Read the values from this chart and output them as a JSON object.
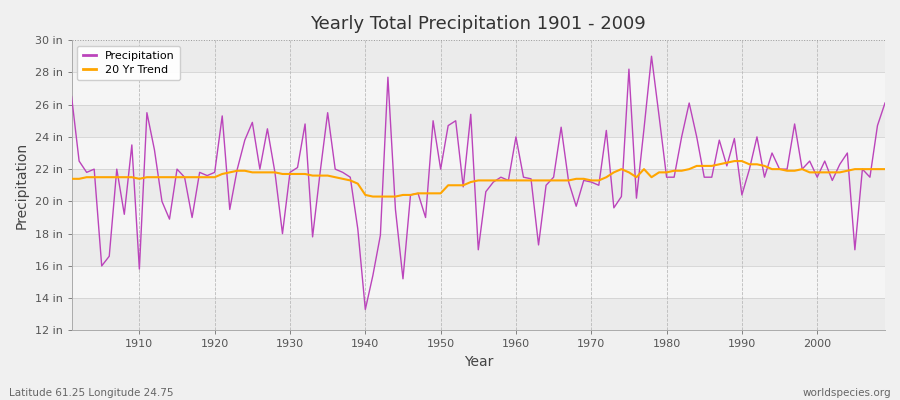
{
  "title": "Yearly Total Precipitation 1901 - 2009",
  "xlabel": "Year",
  "ylabel": "Precipitation",
  "footnote_left": "Latitude 61.25 Longitude 24.75",
  "footnote_right": "worldspecies.org",
  "fig_bg_color": "#f0f0f0",
  "plot_bg_color": "#f4f4f4",
  "precip_color": "#bb44bb",
  "trend_color": "#ffa500",
  "ylim": [
    12,
    30
  ],
  "yticks": [
    12,
    14,
    16,
    18,
    20,
    22,
    24,
    26,
    28,
    30
  ],
  "ytick_labels": [
    "12 in",
    "14 in",
    "16 in",
    "18 in",
    "20 in",
    "22 in",
    "24 in",
    "26 in",
    "28 in",
    "30 in"
  ],
  "years": [
    1901,
    1902,
    1903,
    1904,
    1905,
    1906,
    1907,
    1908,
    1909,
    1910,
    1911,
    1912,
    1913,
    1914,
    1915,
    1916,
    1917,
    1918,
    1919,
    1920,
    1921,
    1922,
    1923,
    1924,
    1925,
    1926,
    1927,
    1928,
    1929,
    1930,
    1931,
    1932,
    1933,
    1934,
    1935,
    1936,
    1937,
    1938,
    1939,
    1940,
    1941,
    1942,
    1943,
    1944,
    1945,
    1946,
    1947,
    1948,
    1949,
    1950,
    1951,
    1952,
    1953,
    1954,
    1955,
    1956,
    1957,
    1958,
    1959,
    1960,
    1961,
    1962,
    1963,
    1964,
    1965,
    1966,
    1967,
    1968,
    1969,
    1970,
    1971,
    1972,
    1973,
    1974,
    1975,
    1976,
    1977,
    1978,
    1979,
    1980,
    1981,
    1982,
    1983,
    1984,
    1985,
    1986,
    1987,
    1988,
    1989,
    1990,
    1991,
    1992,
    1993,
    1994,
    1995,
    1996,
    1997,
    1998,
    1999,
    2000,
    2001,
    2002,
    2003,
    2004,
    2005,
    2006,
    2007,
    2008,
    2009
  ],
  "precip": [
    26.5,
    22.5,
    21.8,
    22.0,
    16.0,
    16.6,
    22.0,
    19.2,
    23.5,
    15.8,
    25.5,
    23.2,
    20.0,
    18.9,
    22.0,
    21.5,
    19.0,
    21.8,
    21.6,
    21.8,
    25.3,
    19.5,
    22.0,
    23.8,
    24.9,
    22.0,
    24.5,
    21.8,
    18.0,
    21.8,
    22.1,
    24.8,
    17.8,
    21.8,
    25.5,
    22.0,
    21.8,
    21.5,
    18.3,
    13.3,
    15.4,
    17.9,
    27.7,
    19.5,
    15.2,
    20.4,
    20.5,
    19.0,
    25.0,
    22.0,
    24.7,
    25.0,
    20.9,
    25.4,
    17.0,
    20.6,
    21.2,
    21.5,
    21.3,
    24.0,
    21.5,
    21.4,
    17.3,
    21.0,
    21.5,
    24.6,
    21.2,
    19.7,
    21.3,
    21.2,
    21.0,
    24.4,
    19.6,
    20.3,
    28.2,
    20.2,
    24.5,
    29.0,
    25.3,
    21.5,
    21.5,
    24.0,
    26.1,
    24.0,
    21.5,
    21.5,
    23.8,
    22.2,
    23.9,
    20.4,
    22.0,
    24.0,
    21.5,
    23.0,
    22.0,
    22.0,
    24.8,
    22.0,
    22.5,
    21.5,
    22.5,
    21.3,
    22.3,
    23.0,
    17.0,
    22.0,
    21.5,
    24.7,
    26.1
  ],
  "trend": [
    21.4,
    21.4,
    21.5,
    21.5,
    21.5,
    21.5,
    21.5,
    21.5,
    21.5,
    21.4,
    21.5,
    21.5,
    21.5,
    21.5,
    21.5,
    21.5,
    21.5,
    21.5,
    21.5,
    21.5,
    21.7,
    21.8,
    21.9,
    21.9,
    21.8,
    21.8,
    21.8,
    21.8,
    21.7,
    21.7,
    21.7,
    21.7,
    21.6,
    21.6,
    21.6,
    21.5,
    21.4,
    21.3,
    21.1,
    20.4,
    20.3,
    20.3,
    20.3,
    20.3,
    20.4,
    20.4,
    20.5,
    20.5,
    20.5,
    20.5,
    21.0,
    21.0,
    21.0,
    21.2,
    21.3,
    21.3,
    21.3,
    21.3,
    21.3,
    21.3,
    21.3,
    21.3,
    21.3,
    21.3,
    21.3,
    21.3,
    21.3,
    21.4,
    21.4,
    21.3,
    21.3,
    21.5,
    21.8,
    22.0,
    21.8,
    21.5,
    22.0,
    21.5,
    21.8,
    21.8,
    21.9,
    21.9,
    22.0,
    22.2,
    22.2,
    22.2,
    22.3,
    22.4,
    22.5,
    22.5,
    22.3,
    22.3,
    22.2,
    22.0,
    22.0,
    21.9,
    21.9,
    22.0,
    21.8,
    21.8,
    21.8,
    21.8,
    21.8,
    21.9,
    22.0,
    22.0,
    22.0,
    22.0,
    22.0
  ],
  "xticks": [
    1910,
    1920,
    1930,
    1940,
    1950,
    1960,
    1970,
    1980,
    1990,
    2000
  ]
}
